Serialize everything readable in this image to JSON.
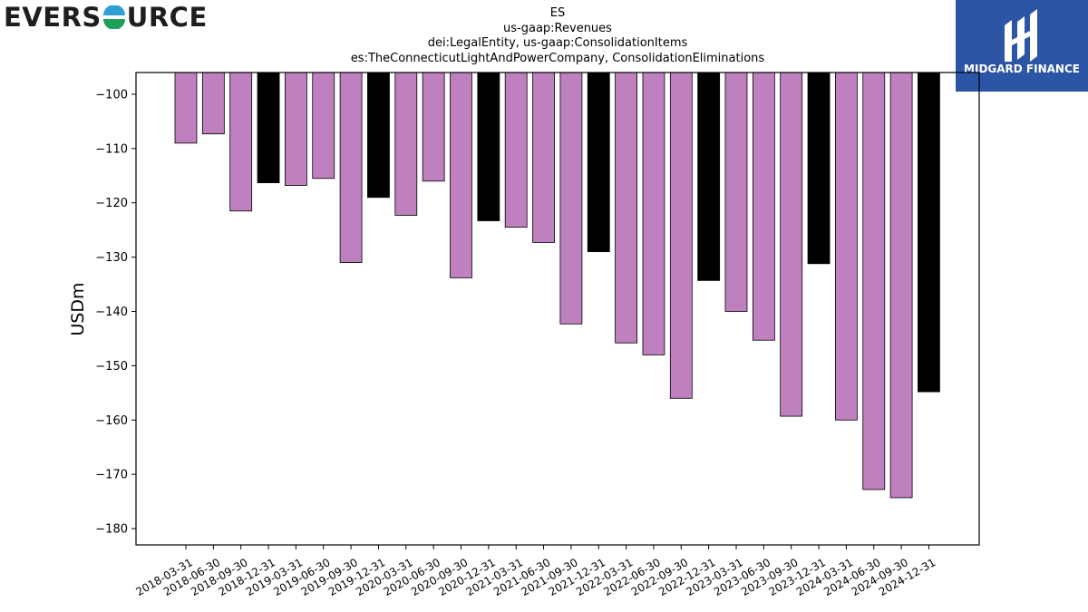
{
  "header": {
    "left_logo_text_before": "EVERS",
    "left_logo_text_after": "URCE",
    "right_logo_text": "MIDGARD FINANCE"
  },
  "title_lines": [
    "ES",
    "us-gaap:Revenues",
    "dei:LegalEntity, us-gaap:ConsolidationItems",
    "es:TheConnecticutLightAndPowerCompany, ConsolidationEliminations"
  ],
  "colors": {
    "quarter_bar": "#bf80bf",
    "year_end_bar": "#000000",
    "right_logo_bg": "#2d55a6"
  },
  "chart_data": {
    "type": "bar",
    "ylabel": "USDm",
    "ylim": [
      -183,
      -96
    ],
    "yticks": [
      -100,
      -110,
      -120,
      -130,
      -140,
      -150,
      -160,
      -170,
      -180
    ],
    "categories": [
      "2018-03-31",
      "2018-06-30",
      "2018-09-30",
      "2018-12-31",
      "2019-03-31",
      "2019-06-30",
      "2019-09-30",
      "2019-12-31",
      "2020-03-31",
      "2020-06-30",
      "2020-09-30",
      "2020-12-31",
      "2021-03-31",
      "2021-06-30",
      "2021-09-30",
      "2021-12-31",
      "2022-03-31",
      "2022-06-30",
      "2022-09-30",
      "2022-12-31",
      "2023-03-31",
      "2023-06-30",
      "2023-09-30",
      "2023-12-31",
      "2024-03-31",
      "2024-06-30",
      "2024-09-30",
      "2024-12-31"
    ],
    "values": [
      -109.0,
      -107.3,
      -121.5,
      -116.3,
      -116.8,
      -115.5,
      -131.0,
      -119.0,
      -122.3,
      -116.0,
      -133.8,
      -123.3,
      -124.5,
      -127.3,
      -142.3,
      -129.0,
      -145.8,
      -148.0,
      -156.0,
      -134.3,
      -140.0,
      -145.3,
      -159.3,
      -131.2,
      -160.0,
      -172.8,
      -174.3,
      -154.8
    ],
    "bar_kind": [
      "quarter",
      "quarter",
      "quarter",
      "year_end",
      "quarter",
      "quarter",
      "quarter",
      "year_end",
      "quarter",
      "quarter",
      "quarter",
      "year_end",
      "quarter",
      "quarter",
      "quarter",
      "year_end",
      "quarter",
      "quarter",
      "quarter",
      "year_end",
      "quarter",
      "quarter",
      "quarter",
      "year_end",
      "quarter",
      "quarter",
      "quarter",
      "year_end"
    ],
    "grid": false,
    "legend": "none"
  }
}
